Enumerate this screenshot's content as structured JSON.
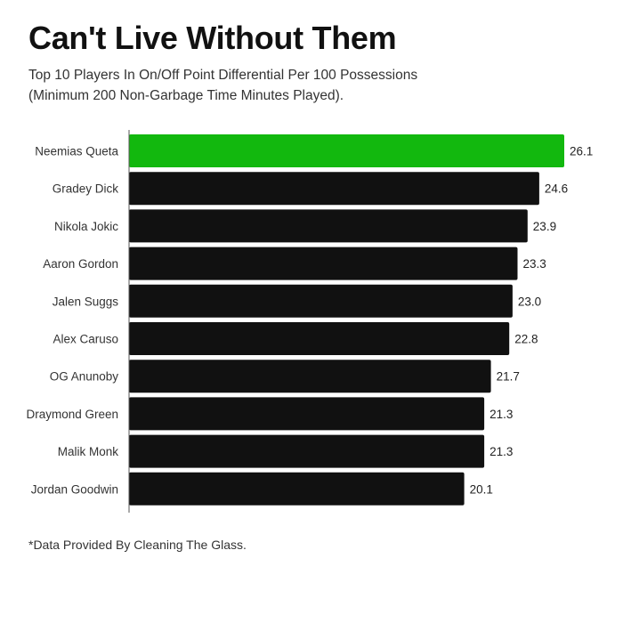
{
  "title": "Can't Live Without Them",
  "subtitle_line1": "Top 10 Players In On/Off Point Differential Per 100 Possessions",
  "subtitle_line2": "(Minimum 200 Non-Garbage Time Minutes Played).",
  "footnote": "*Data Provided By Cleaning The Glass.",
  "colors": {
    "highlight": "#12b80e",
    "bar": "#111111",
    "axis": "#555555",
    "text": "#333333"
  },
  "chart_data": {
    "type": "bar",
    "orientation": "horizontal",
    "title": "Can't Live Without Them",
    "xlabel": "",
    "ylabel": "",
    "xlim": [
      0,
      26.1
    ],
    "categories": [
      "Neemias Queta",
      "Gradey Dick",
      "Nikola Jokic",
      "Aaron Gordon",
      "Jalen Suggs",
      "Alex Caruso",
      "OG Anunoby",
      "Draymond Green",
      "Malik Monk",
      "Jordan Goodwin"
    ],
    "values": [
      26.1,
      24.6,
      23.9,
      23.3,
      23.0,
      22.8,
      21.7,
      21.3,
      21.3,
      20.1
    ],
    "value_labels": [
      "26.1",
      "24.6",
      "23.9",
      "23.3",
      "23.0",
      "22.8",
      "21.7",
      "21.3",
      "21.3",
      "20.1"
    ],
    "highlighted": [
      0
    ]
  }
}
